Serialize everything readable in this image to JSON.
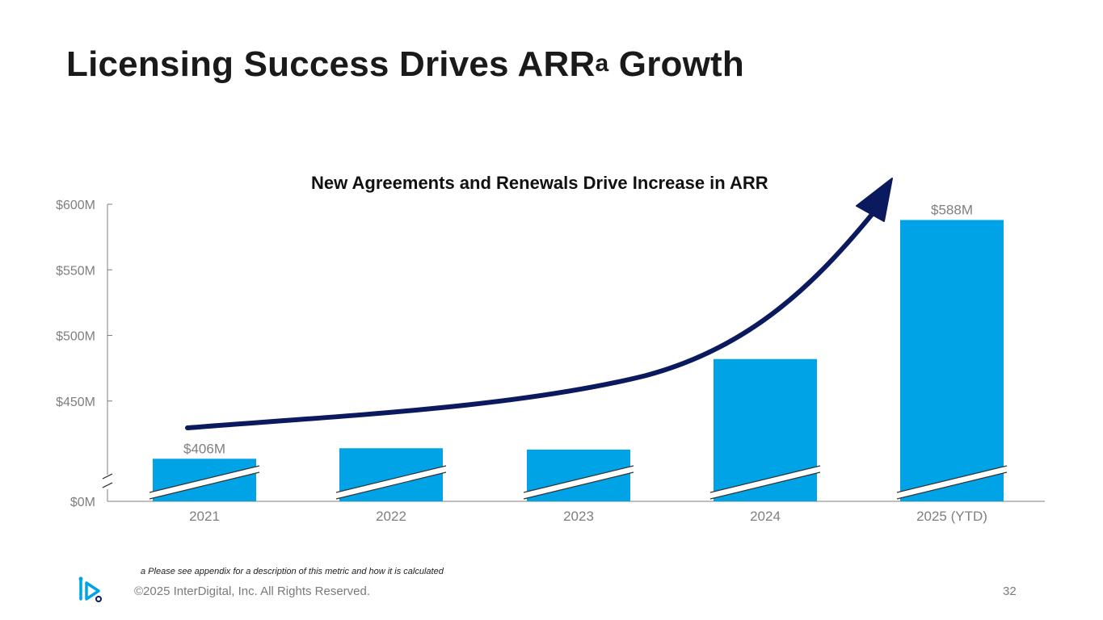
{
  "slide": {
    "title_main": "Licensing Success Drives ARR",
    "title_sup": "a",
    "title_tail": " Growth",
    "footnote": "a Please see appendix for a description of this metric and how it is calculated",
    "copyright": "©2025 InterDigital, Inc. All Rights Reserved.",
    "page_number": "32"
  },
  "colors": {
    "bar": "#00a3e6",
    "arrow": "#0b1a5e",
    "axis": "#7f7f7f",
    "tick_text": "#7f7f7f"
  },
  "chart_data": {
    "type": "bar",
    "title": "New Agreements and Renewals Drive Increase in ARR",
    "categories": [
      "2021",
      "2022",
      "2023",
      "2024",
      "2025 (YTD)"
    ],
    "values": [
      406,
      414,
      413,
      482,
      588
    ],
    "unit": "$M",
    "y_axis_break": true,
    "ylim": [
      0,
      600
    ],
    "y_ticks": [
      {
        "value": 0,
        "label": "$0M"
      },
      {
        "value": 450,
        "label": "$450M"
      },
      {
        "value": 500,
        "label": "$500M"
      },
      {
        "value": 550,
        "label": "$550M"
      },
      {
        "value": 600,
        "label": "$600M"
      }
    ],
    "data_labels": [
      {
        "index": 0,
        "label": "$406M"
      },
      {
        "index": 4,
        "label": "$588M"
      }
    ],
    "annotation": "trend arrow rising from 2021 to 2025 (YTD)"
  }
}
